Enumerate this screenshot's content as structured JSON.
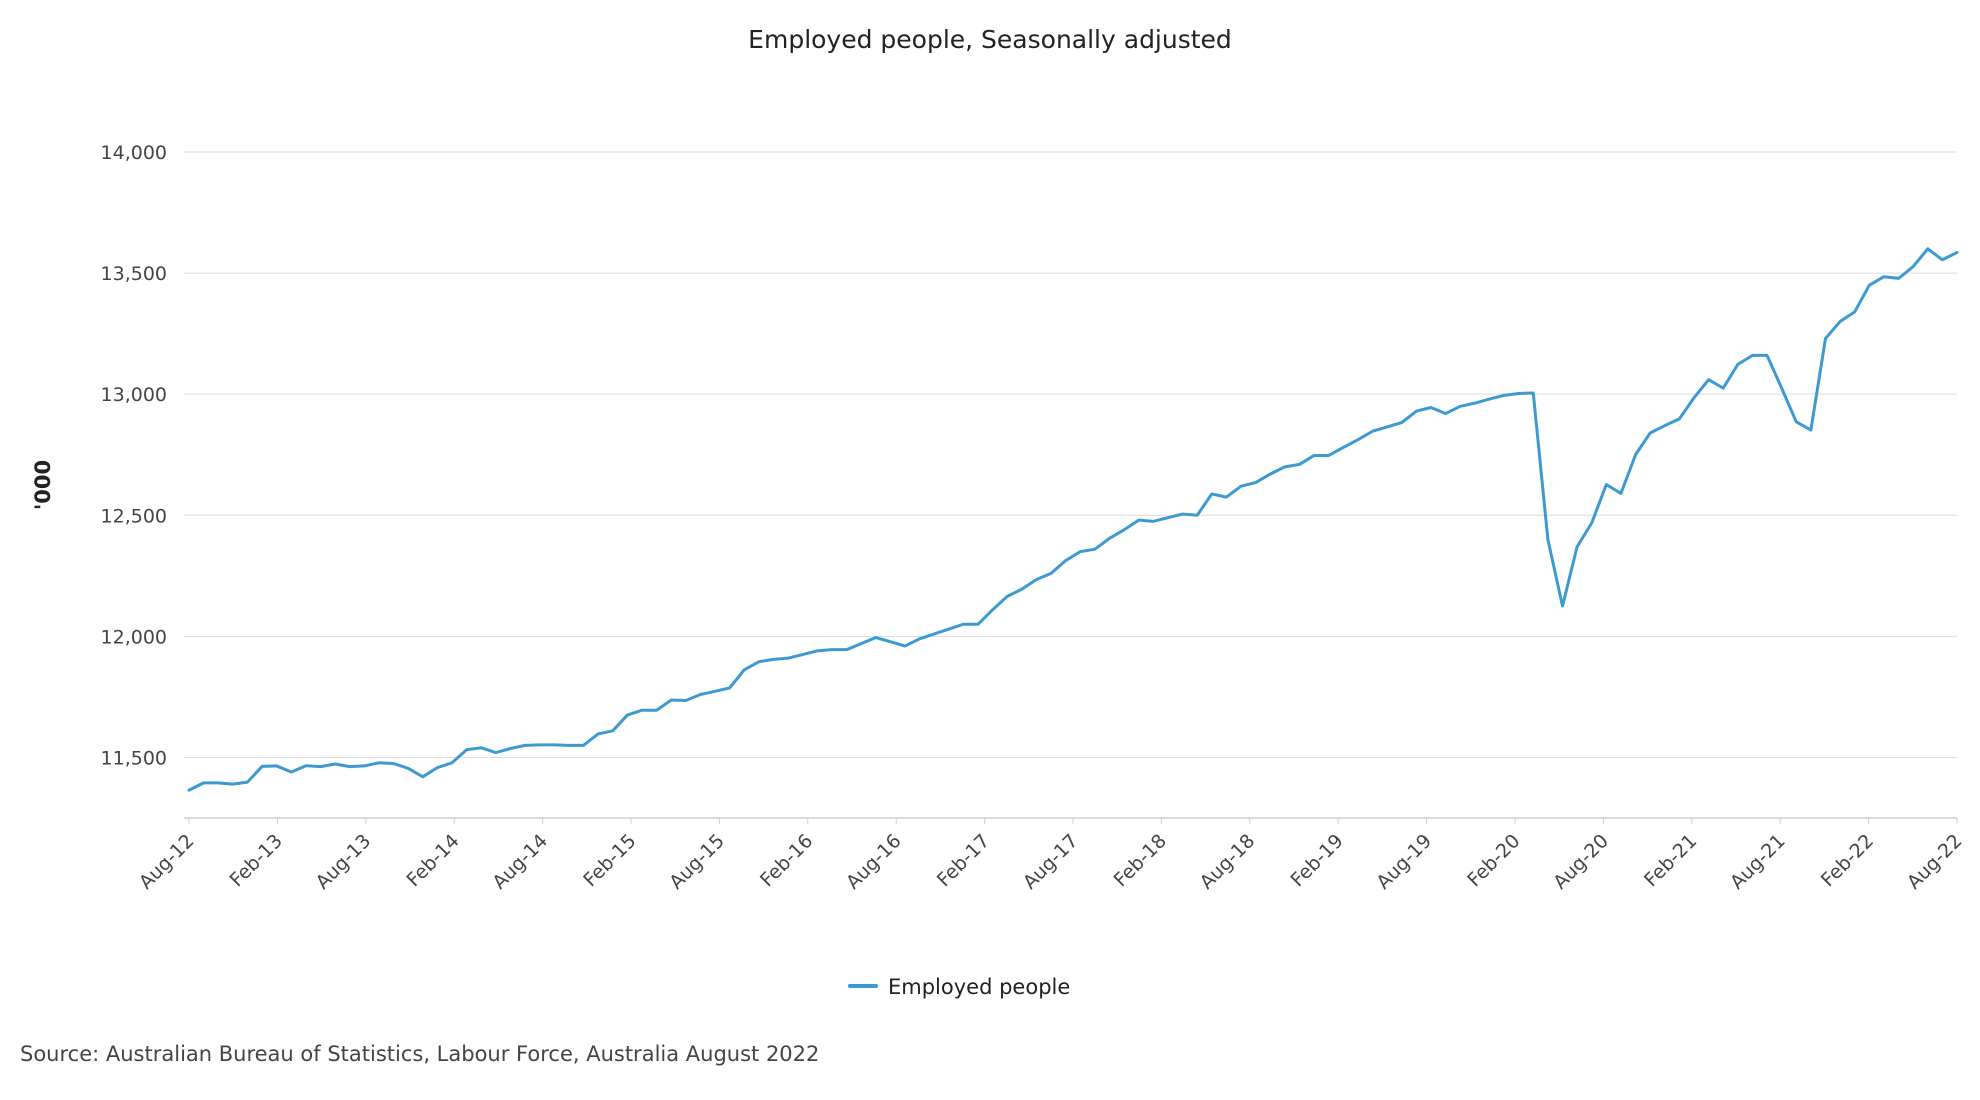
{
  "colors": {
    "series": "#3d9ad1",
    "text": "#222222"
  },
  "source": "Source: Australian Bureau of Statistics, Labour Force, Australia August 2022",
  "chart_data": {
    "type": "line",
    "title": "Employed people, Seasonally adjusted",
    "xlabel": "",
    "ylabel": "'000",
    "ylim": [
      11250,
      14000
    ],
    "yticks": [
      11500,
      12000,
      12500,
      13000,
      13500,
      14000
    ],
    "ytick_labels": [
      "11,500",
      "12,000",
      "12,500",
      "13,000",
      "13,500",
      "14,000"
    ],
    "x_start": "Aug-12",
    "x_end": "Aug-22",
    "x_tick_labels": [
      "Aug-12",
      "Feb-13",
      "Aug-13",
      "Feb-14",
      "Aug-14",
      "Feb-15",
      "Aug-15",
      "Feb-16",
      "Aug-16",
      "Feb-17",
      "Aug-17",
      "Feb-18",
      "Aug-18",
      "Feb-19",
      "Aug-19",
      "Feb-20",
      "Aug-20",
      "Feb-21",
      "Aug-21",
      "Feb-22",
      "Aug-22"
    ],
    "grid": true,
    "legend_position": "bottom-center",
    "series": [
      {
        "name": "Employed people",
        "values": [
          11365,
          11395,
          11395,
          11390,
          11398,
          11463,
          11465,
          11440,
          11466,
          11462,
          11473,
          11462,
          11465,
          11478,
          11475,
          11455,
          11420,
          11458,
          11478,
          11532,
          11540,
          11520,
          11537,
          11550,
          11552,
          11552,
          11550,
          11550,
          11597,
          11610,
          11675,
          11695,
          11695,
          11737,
          11735,
          11760,
          11773,
          11787,
          11862,
          11895,
          11905,
          11910,
          11925,
          11940,
          11945,
          11945,
          11970,
          11995,
          11978,
          11960,
          11990,
          12010,
          12030,
          12050,
          12050,
          12110,
          12165,
          12195,
          12235,
          12260,
          12313,
          12350,
          12360,
          12405,
          12440,
          12480,
          12475,
          12490,
          12505,
          12500,
          12588,
          12575,
          12620,
          12635,
          12670,
          12700,
          12710,
          12747,
          12747,
          12780,
          12812,
          12847,
          12865,
          12883,
          12930,
          12945,
          12920,
          12950,
          12963,
          12980,
          12995,
          13003,
          13005,
          12400,
          12125,
          12370,
          12468,
          12627,
          12590,
          12750,
          12840,
          12870,
          12898,
          12985,
          13060,
          13025,
          13123,
          13160,
          13160,
          13025,
          12886,
          12852,
          13230,
          13300,
          13340,
          13450,
          13485,
          13478,
          13527,
          13600,
          13555,
          13585
        ]
      }
    ]
  }
}
